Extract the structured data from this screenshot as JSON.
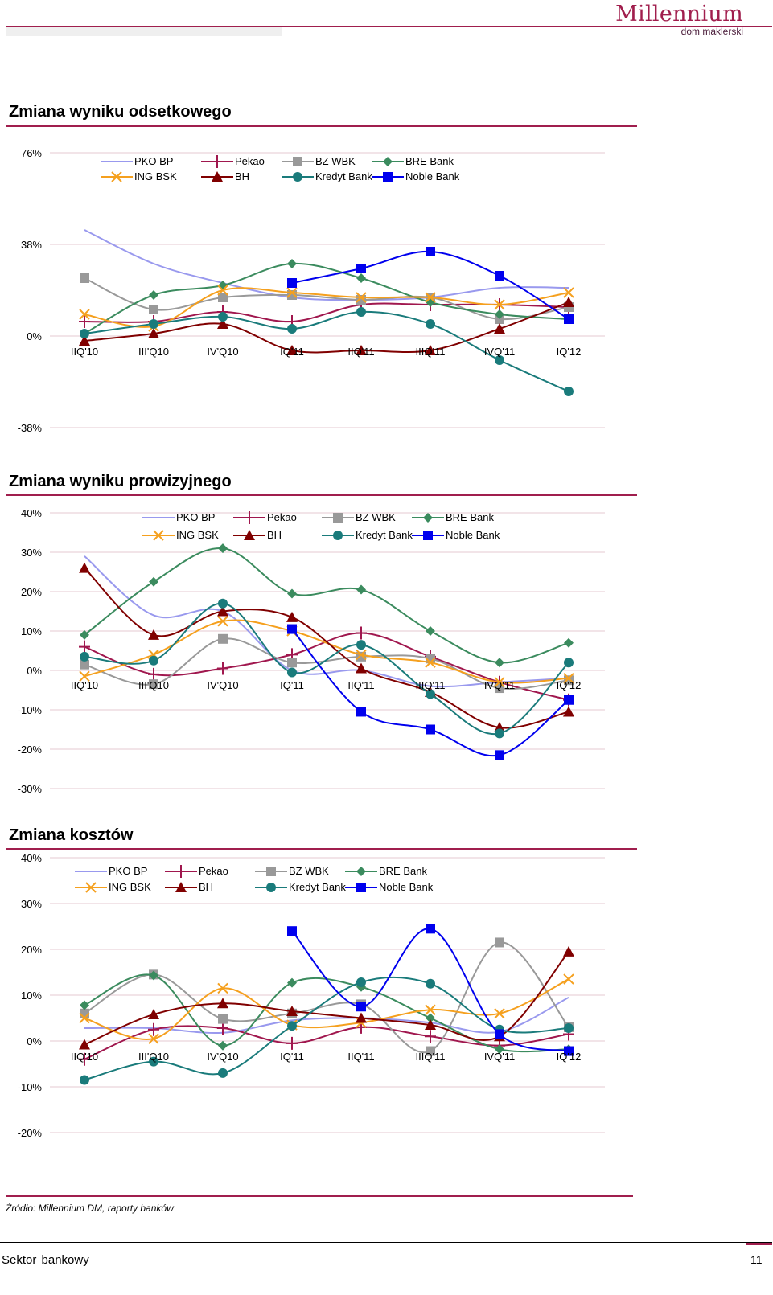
{
  "header": {
    "logo_main": "Millennium",
    "logo_sub": "dom maklerski"
  },
  "footer": {
    "section": "Sektor bankowy",
    "page": "11",
    "source": "Źródło: Millennium DM, raporty banków"
  },
  "colors": {
    "PKO BP": "#9999ee",
    "Pekao": "#a0174e",
    "BZ WBK": "#999999",
    "BRE Bank": "#3b8b5e",
    "ING BSK": "#f5a01e",
    "BH": "#800000",
    "Kredyt Bank": "#1a7b7b",
    "Noble Bank": "#0000ee",
    "grid": "#e6c8d2",
    "accent": "#a01e4d"
  },
  "chart_data": [
    {
      "type": "line",
      "title": "Zmiana wyniku odsetkowego",
      "categories": [
        "IIQ'10",
        "III'Q10",
        "IV'Q10",
        "IQ'11",
        "IIQ'11",
        "IIIQ'11",
        "IVQ'11",
        "IQ'12"
      ],
      "y_ticks": [
        "76%",
        "38%",
        "0%",
        "-38%"
      ],
      "ylim": [
        -38,
        76
      ],
      "series": [
        {
          "name": "PKO BP",
          "marker": "none",
          "values": [
            44,
            30,
            22,
            16,
            15,
            16,
            20,
            20
          ]
        },
        {
          "name": "Pekao",
          "marker": "plus",
          "values": [
            6,
            6,
            10,
            6,
            13,
            13,
            13,
            12
          ]
        },
        {
          "name": "BZ WBK",
          "marker": "square",
          "values": [
            24,
            11,
            16,
            17,
            15,
            16,
            7,
            12
          ]
        },
        {
          "name": "BRE Bank",
          "marker": "diamond",
          "values": [
            1,
            17,
            21,
            30,
            24,
            14,
            9,
            7
          ]
        },
        {
          "name": "ING BSK",
          "marker": "x",
          "values": [
            9,
            4,
            19,
            18,
            16,
            16,
            13,
            18
          ]
        },
        {
          "name": "BH",
          "marker": "triangle",
          "values": [
            -2,
            1,
            5,
            -6,
            -6,
            -6,
            3,
            14
          ]
        },
        {
          "name": "Kredyt Bank",
          "marker": "circle",
          "values": [
            1,
            5,
            8,
            3,
            10,
            5,
            -10,
            -23
          ]
        },
        {
          "name": "Noble Bank",
          "marker": "square",
          "values": [
            null,
            null,
            null,
            22,
            28,
            35,
            25,
            7
          ]
        }
      ]
    },
    {
      "type": "line",
      "title": "Zmiana wyniku prowizyjnego",
      "categories": [
        "IIQ'10",
        "III'Q10",
        "IV'Q10",
        "IQ'11",
        "IIQ'11",
        "IIIQ'11",
        "IVQ'11",
        "IQ'12"
      ],
      "y_ticks": [
        "40%",
        "30%",
        "20%",
        "10%",
        "0%",
        "-10%",
        "-20%",
        "-30%"
      ],
      "ylim": [
        -30,
        40
      ],
      "series": [
        {
          "name": "PKO BP",
          "marker": "none",
          "values": [
            29,
            14,
            15,
            0,
            0,
            -4,
            -3,
            -2
          ]
        },
        {
          "name": "Pekao",
          "marker": "plus",
          "values": [
            6,
            -1,
            0.5,
            4,
            9.5,
            3.5,
            -3,
            -7.5
          ]
        },
        {
          "name": "BZ WBK",
          "marker": "square",
          "values": [
            1.5,
            -3.5,
            8,
            2,
            3.5,
            3,
            -4.5,
            -2.5
          ]
        },
        {
          "name": "BRE Bank",
          "marker": "diamond",
          "values": [
            9,
            22.5,
            31,
            19.5,
            20.5,
            10,
            2,
            7
          ]
        },
        {
          "name": "ING BSK",
          "marker": "x",
          "values": [
            -1.5,
            4,
            12.5,
            10,
            4,
            2,
            -3,
            -2
          ]
        },
        {
          "name": "BH",
          "marker": "triangle",
          "values": [
            26,
            9,
            15,
            13.5,
            0.5,
            -5.5,
            -14.5,
            -10.5
          ]
        },
        {
          "name": "Kredyt Bank",
          "marker": "circle",
          "values": [
            3.5,
            2.5,
            17,
            -0.5,
            6.5,
            -6,
            -16,
            2
          ]
        },
        {
          "name": "Noble Bank",
          "marker": "square",
          "values": [
            null,
            null,
            null,
            10.5,
            -10.5,
            -15,
            -21.5,
            -7.5
          ]
        }
      ]
    },
    {
      "type": "line",
      "title": "Zmiana kosztów",
      "categories": [
        "IIQ'10",
        "III'Q10",
        "IV'Q10",
        "IQ'11",
        "IIQ'11",
        "IIIQ'11",
        "IVQ'11",
        "IQ'12"
      ],
      "y_ticks": [
        "40%",
        "30%",
        "20%",
        "10%",
        "0%",
        "-10%",
        "-20%"
      ],
      "ylim": [
        -20,
        40
      ],
      "series": [
        {
          "name": "PKO BP",
          "marker": "none",
          "values": [
            2.8,
            2.8,
            1.8,
            4.5,
            5,
            4,
            2,
            9.5
          ]
        },
        {
          "name": "Pekao",
          "marker": "plus",
          "values": [
            -4,
            2.5,
            2.8,
            -0.5,
            3,
            1,
            -1,
            1.5
          ]
        },
        {
          "name": "BZ WBK",
          "marker": "square",
          "values": [
            6,
            14.5,
            4.8,
            6,
            8,
            -2.2,
            21.5,
            3
          ]
        },
        {
          "name": "BRE Bank",
          "marker": "diamond",
          "values": [
            7.8,
            14.3,
            -1,
            12.7,
            11.8,
            5,
            -1.8,
            -1.8
          ]
        },
        {
          "name": "ING BSK",
          "marker": "x",
          "values": [
            5,
            0.5,
            11.5,
            3.5,
            4,
            6.8,
            6,
            13.5
          ]
        },
        {
          "name": "BH",
          "marker": "triangle",
          "values": [
            -0.8,
            5.8,
            8.2,
            6.5,
            5,
            3.5,
            1,
            19.5
          ]
        },
        {
          "name": "Kredyt Bank",
          "marker": "circle",
          "values": [
            -8.5,
            -4.5,
            -7,
            3.3,
            12.8,
            12.5,
            2.5,
            2.8
          ]
        },
        {
          "name": "Noble Bank",
          "marker": "square",
          "values": [
            null,
            null,
            null,
            24,
            7.5,
            24.5,
            1.5,
            -2.2
          ]
        }
      ]
    }
  ]
}
